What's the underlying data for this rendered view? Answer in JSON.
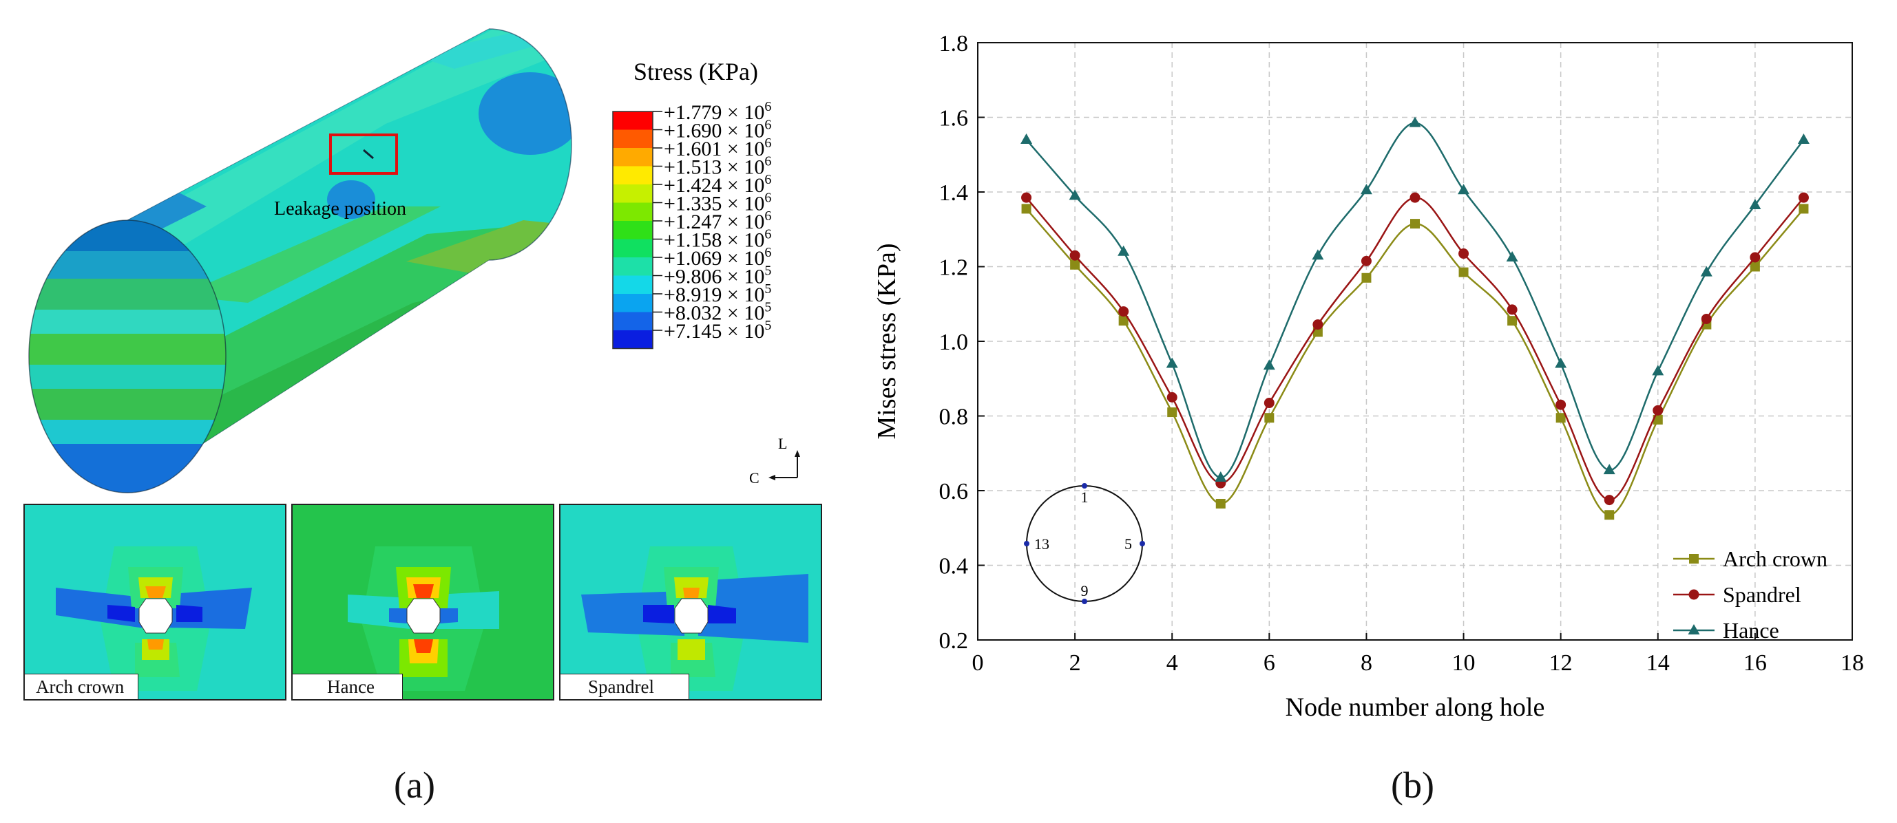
{
  "panel_a": {
    "label": "(a)",
    "legend_title": "Stress (KPa)",
    "legend_entries": [
      {
        "mantissa": "+1.779 × 10",
        "exp": "6",
        "color": "#ff0000"
      },
      {
        "mantissa": "+1.690 × 10",
        "exp": "6",
        "color": "#ff5a00"
      },
      {
        "mantissa": "+1.601 × 10",
        "exp": "6",
        "color": "#ffaa00"
      },
      {
        "mantissa": "+1.513 × 10",
        "exp": "6",
        "color": "#ffea00"
      },
      {
        "mantissa": "+1.424 × 10",
        "exp": "6",
        "color": "#c6f000"
      },
      {
        "mantissa": "+1.335 × 10",
        "exp": "6",
        "color": "#7de800"
      },
      {
        "mantissa": "+1.247 × 10",
        "exp": "6",
        "color": "#2fe018"
      },
      {
        "mantissa": "+1.158 × 10",
        "exp": "6",
        "color": "#10e060"
      },
      {
        "mantissa": "+1.069 × 10",
        "exp": "6",
        "color": "#1de0a8"
      },
      {
        "mantissa": "+9.806 × 10",
        "exp": "5",
        "color": "#14d8e8"
      },
      {
        "mantissa": "+8.919 × 10",
        "exp": "5",
        "color": "#0aa4f0"
      },
      {
        "mantissa": "+8.032 × 10",
        "exp": "5",
        "color": "#1464e8"
      },
      {
        "mantissa": "+7.145 × 10",
        "exp": "5",
        "color": "#0a1ee0"
      }
    ],
    "leakage_label": "Leakage position",
    "axis_l": "L",
    "axis_c": "C",
    "insets": [
      "Arch crown",
      "Hance",
      "Spandrel"
    ]
  },
  "panel_b": {
    "label": "(b)"
  },
  "chart_data": {
    "type": "line",
    "xlabel": "Node number along hole",
    "ylabel": "Mises stress (KPa)",
    "xlim": [
      0,
      18
    ],
    "ylim": [
      0.2,
      1.8
    ],
    "xticks": [
      0,
      2,
      4,
      6,
      8,
      10,
      12,
      14,
      16,
      18
    ],
    "yticks": [
      0.2,
      0.4,
      0.6,
      0.8,
      1.0,
      1.2,
      1.4,
      1.6,
      1.8
    ],
    "grid": true,
    "legend_position": "bottom-right",
    "x": [
      1,
      2,
      3,
      4,
      5,
      6,
      7,
      8,
      9,
      10,
      11,
      12,
      13,
      14,
      15,
      16,
      17
    ],
    "series": [
      {
        "name": "Arch crown",
        "marker": "square",
        "color": "#8b8b16",
        "values": [
          1.355,
          1.205,
          1.055,
          0.81,
          0.565,
          0.795,
          1.025,
          1.17,
          1.315,
          1.185,
          1.055,
          0.795,
          0.535,
          0.79,
          1.045,
          1.2,
          1.355
        ]
      },
      {
        "name": "Spandrel",
        "marker": "circle",
        "color": "#9a1414",
        "values": [
          1.385,
          1.23,
          1.08,
          0.85,
          0.62,
          0.835,
          1.045,
          1.215,
          1.385,
          1.235,
          1.085,
          0.83,
          0.575,
          0.815,
          1.06,
          1.225,
          1.385
        ]
      },
      {
        "name": "Hance",
        "marker": "triangle",
        "color": "#1d6b6b",
        "values": [
          1.54,
          1.39,
          1.24,
          0.94,
          0.635,
          0.935,
          1.23,
          1.405,
          1.585,
          1.405,
          1.225,
          0.94,
          0.655,
          0.92,
          1.185,
          1.365,
          1.54
        ]
      }
    ],
    "inset_nodes": [
      "1",
      "5",
      "9",
      "13"
    ]
  }
}
